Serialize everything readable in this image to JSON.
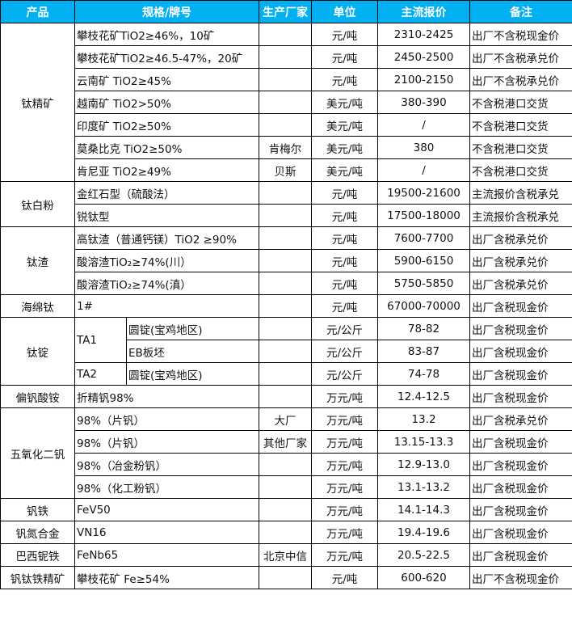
{
  "colors": {
    "header_bg": "#00B0F0",
    "header_text": "#FFFFFF"
  },
  "headers": [
    "产品",
    "规格/牌号",
    "生产厂家",
    "单位",
    "主流报价",
    "备注"
  ],
  "groups": [
    {
      "product": "钛精矿",
      "rows": [
        {
          "spec": "攀枝花矿TiO2≥46%，10矿",
          "maker": "",
          "unit": "元/吨",
          "price": "2310-2425",
          "note": "出厂不含税现金价"
        },
        {
          "spec": "攀枝花矿TiO2≥46.5-47%，20矿",
          "maker": "",
          "unit": "元/吨",
          "price": "2450-2500",
          "note": "出厂不含税承兑价"
        },
        {
          "spec": "云南矿 TiO2≥45%",
          "maker": "",
          "unit": "元/吨",
          "price": "2100-2150",
          "note": "出厂不含税承兑价"
        },
        {
          "spec": "越南矿 TiO2>50%",
          "maker": "",
          "unit": "美元/吨",
          "price": "380-390",
          "note": "不含税港口交货"
        },
        {
          "spec": "印度矿 TiO2≥50%",
          "maker": "",
          "unit": "美元/吨",
          "price": "/",
          "note": "不含税港口交货"
        },
        {
          "spec": "莫桑比克 TiO2≥50%",
          "maker": "肯梅尔",
          "unit": "美元/吨",
          "price": "380",
          "note": "不含税港口交货"
        },
        {
          "spec": "肯尼亚 TiO2≥49%",
          "maker": "贝斯",
          "unit": "美元/吨",
          "price": "/",
          "note": "不含税港口交货"
        }
      ]
    },
    {
      "product": "钛白粉",
      "rows": [
        {
          "spec": "金红石型（硫酸法）",
          "maker": "",
          "unit": "元/吨",
          "price": "19500-21600",
          "note": "主流报价含税承兑"
        },
        {
          "spec": "锐钛型",
          "maker": "",
          "unit": "元/吨",
          "price": "17500-18000",
          "note": "主流报价含税承兑"
        }
      ]
    },
    {
      "product": "钛渣",
      "rows": [
        {
          "spec": "高钛渣（普通钙镁）TiO2 ≥90%",
          "maker": "",
          "unit": "元/吨",
          "price": "7600-7700",
          "note": "出厂含税承兑价"
        },
        {
          "spec": "酸溶渣TiO₂≥74%(川）",
          "maker": "",
          "unit": "元/吨",
          "price": "5900-6150",
          "note": "出厂含税承兑价"
        },
        {
          "spec": "酸溶渣TiO₂≥74%(滇）",
          "maker": "",
          "unit": "元/吨",
          "price": "5750-5850",
          "note": "出厂含税承兑价"
        }
      ]
    },
    {
      "product": "海绵钛",
      "rows": [
        {
          "spec": "1#",
          "maker": "",
          "unit": "元/吨",
          "price": "67000-70000",
          "note": "出厂含税现金价"
        }
      ]
    },
    {
      "product": "钛锭",
      "rows": [
        {
          "grade": "TA1",
          "grade_span": 2,
          "spec": "圆锭(宝鸡地区)",
          "maker": "",
          "unit": "元/公斤",
          "price": "78-82",
          "note": "出厂含税现金价"
        },
        {
          "spec": "EB板坯",
          "maker": "",
          "unit": "元/公斤",
          "price": "83-87",
          "note": "出厂含税现金价"
        },
        {
          "grade": "TA2",
          "grade_span": 1,
          "spec": "圆锭(宝鸡地区)",
          "maker": "",
          "unit": "元/公斤",
          "price": "74-78",
          "note": "出厂含税现金价"
        }
      ]
    },
    {
      "product": "偏钒酸铵",
      "rows": [
        {
          "spec": "折精钒98%",
          "maker": "",
          "unit": "万元/吨",
          "price": "12.4-12.5",
          "note": "出厂含税现金价"
        }
      ]
    },
    {
      "product": "五氧化二钒",
      "rows": [
        {
          "spec": "98%（片钒）",
          "maker": "大厂",
          "unit": "万元/吨",
          "price": "13.2",
          "note": "出厂含税承兑价"
        },
        {
          "spec": "98%（片钒）",
          "maker": "其他厂家",
          "unit": "万元/吨",
          "price": "13.15-13.3",
          "note": "出厂含税现金价"
        },
        {
          "spec": "98%（冶金粉钒）",
          "maker": "",
          "unit": "万元/吨",
          "price": "12.9-13.0",
          "note": "出厂含税现金价"
        },
        {
          "spec": "98%（化工粉钒）",
          "maker": "",
          "unit": "万元/吨",
          "price": "13.1-13.2",
          "note": "出厂含税现金价"
        }
      ]
    },
    {
      "product": "钒铁",
      "rows": [
        {
          "spec": "FeV50",
          "maker": "",
          "unit": "万元/吨",
          "price": "14.1-14.3",
          "note": "出厂含税现金价"
        }
      ]
    },
    {
      "product": "钒氮合金",
      "rows": [
        {
          "spec": "VN16",
          "maker": "",
          "unit": "万元/吨",
          "price": "19.4-19.6",
          "note": "出厂含税现金价"
        }
      ]
    },
    {
      "product": "巴西铌铁",
      "rows": [
        {
          "spec": "FeNb65",
          "maker": "北京中信",
          "unit": "万元/吨",
          "price": "20.5-22.5",
          "note": "出厂含税现金价"
        }
      ]
    },
    {
      "product": "钒钛铁精矿",
      "rows": [
        {
          "spec": "攀枝花矿 Fe≥54%",
          "maker": "",
          "unit": "元/吨",
          "price": "600-620",
          "note": "出厂不含税现金价"
        }
      ]
    }
  ]
}
